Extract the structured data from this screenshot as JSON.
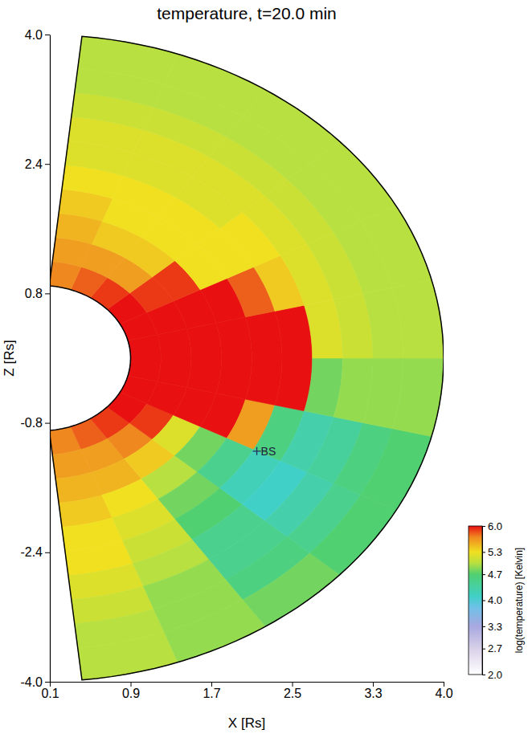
{
  "chart_data": {
    "type": "heatmap",
    "title": "temperature, t=20.0 min",
    "xlabel": "X [Rs]",
    "ylabel": "Z [Rs]",
    "xlim": [
      0.1,
      4.0
    ],
    "ylim": [
      -4.0,
      4.0
    ],
    "xticks": [
      0.1,
      0.9,
      1.7,
      2.5,
      3.3,
      {
        "value": 4.0,
        "label": "4.0"
      }
    ],
    "yticks": [
      {
        "value": -4.0,
        "label": "-4.0"
      },
      -2.4,
      -0.8,
      0.8,
      2.4,
      {
        "value": 4.0,
        "label": "4.0"
      }
    ],
    "r_edges": [
      0.9,
      1.2,
      1.5,
      1.8,
      2.1,
      2.4,
      2.7,
      3.0,
      3.3,
      3.6,
      4.0
    ],
    "theta_edges": [
      -84,
      -70,
      -56,
      -42,
      -28,
      -14,
      0,
      14,
      28,
      42,
      56,
      70,
      84
    ],
    "cells": [
      [
        5.7,
        5.8,
        5.9,
        6.0,
        6.0,
        6.0,
        6.0,
        6.0,
        6.0,
        5.9,
        5.8,
        5.7
      ],
      [
        5.6,
        5.6,
        5.7,
        5.9,
        6.0,
        6.0,
        6.0,
        6.0,
        5.9,
        5.6,
        5.6,
        5.6
      ],
      [
        5.5,
        5.5,
        5.4,
        5.2,
        6.0,
        6.0,
        6.0,
        6.0,
        5.9,
        5.4,
        5.4,
        5.5
      ],
      [
        5.4,
        5.3,
        5.0,
        4.8,
        6.0,
        6.0,
        6.0,
        6.0,
        5.3,
        5.3,
        5.3,
        5.4
      ],
      [
        5.3,
        5.2,
        4.8,
        4.5,
        5.6,
        6.0,
        6.0,
        5.8,
        5.3,
        5.3,
        5.3,
        5.3
      ],
      [
        5.3,
        5.1,
        4.7,
        4.2,
        4.6,
        6.0,
        6.0,
        5.4,
        5.3,
        5.2,
        5.2,
        5.2
      ],
      [
        5.2,
        5.0,
        4.5,
        4.1,
        4.3,
        4.8,
        5.2,
        5.2,
        5.2,
        5.2,
        5.2,
        5.2
      ],
      [
        5.1,
        4.9,
        4.5,
        4.3,
        4.4,
        4.9,
        5.1,
        5.1,
        5.1,
        5.1,
        5.1,
        5.1
      ],
      [
        5.0,
        4.9,
        4.6,
        4.5,
        4.6,
        4.9,
        5.0,
        5.0,
        5.0,
        5.0,
        5.0,
        5.0
      ],
      [
        5.0,
        4.9,
        4.8,
        4.7,
        4.7,
        4.9,
        5.0,
        5.0,
        5.0,
        5.0,
        5.0,
        5.0
      ]
    ],
    "colorbar": {
      "label": "log(temperature) [Kelvin]",
      "range": [
        2.0,
        6.0
      ],
      "ticks": [
        {
          "value": 2.0,
          "label": "2.0"
        },
        2.7,
        3.3,
        {
          "value": 4.0,
          "label": "4.0"
        },
        4.7,
        5.3,
        {
          "value": 6.0,
          "label": "6.0"
        }
      ]
    },
    "annotations": [
      {
        "text": "BS",
        "x": 2.15,
        "y": -1.15
      }
    ]
  }
}
